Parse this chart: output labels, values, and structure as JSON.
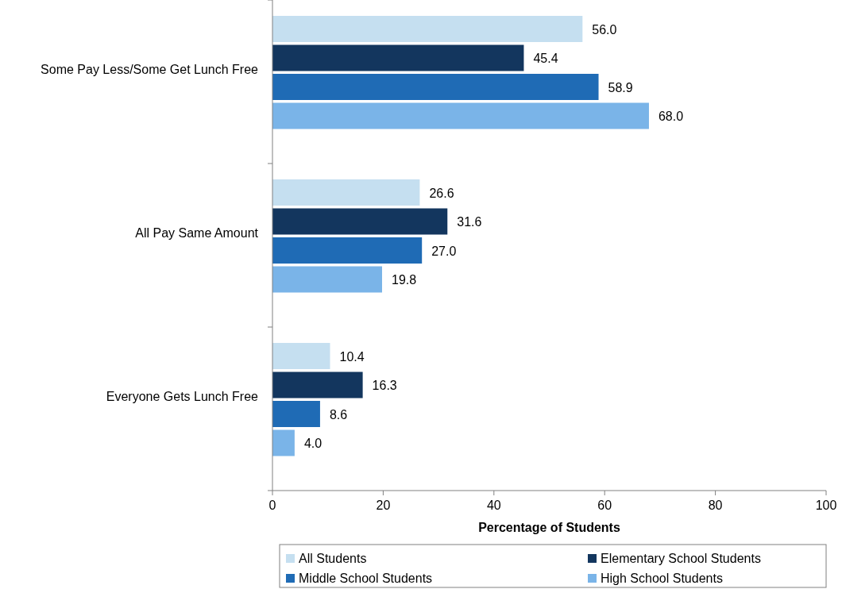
{
  "chart_data": {
    "type": "bar",
    "orientation": "horizontal",
    "categories": [
      "Some Pay Less/Some Get Lunch Free",
      "All Pay Same Amount",
      "Everyone Gets Lunch Free"
    ],
    "series": [
      {
        "name": "All Students",
        "color": "#c5dff0",
        "values": [
          56.0,
          26.6,
          10.4
        ],
        "value_labels": [
          "56.0",
          "26.6",
          "10.4"
        ]
      },
      {
        "name": "Elementary School Students",
        "color": "#13365e",
        "values": [
          45.4,
          31.6,
          16.3
        ],
        "value_labels": [
          "45.4",
          "31.6",
          "16.3"
        ]
      },
      {
        "name": "Middle School Students",
        "color": "#1f6bb5",
        "values": [
          58.9,
          27.0,
          8.6
        ],
        "value_labels": [
          "58.9",
          "27.0",
          "8.6"
        ]
      },
      {
        "name": "High School Students",
        "color": "#7ab4e8",
        "values": [
          68.0,
          19.8,
          4.0
        ],
        "value_labels": [
          "68.0",
          "19.8",
          "4.0"
        ]
      }
    ],
    "xlim": [
      0,
      100
    ],
    "xticks": [
      0,
      20,
      40,
      60,
      80,
      100
    ],
    "xlabel": "Percentage of Students",
    "legend": "bottom",
    "grid": false
  }
}
